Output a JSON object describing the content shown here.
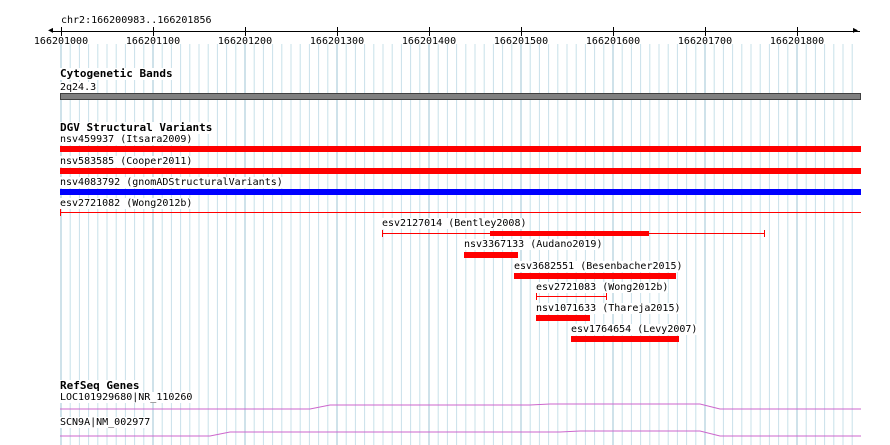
{
  "ruler": {
    "region": "chr2:166200983..166201856",
    "ticks": [
      "166201000",
      "166201100",
      "166201200",
      "166201300",
      "166201400",
      "166201500",
      "166201600",
      "166201700",
      "166201800"
    ]
  },
  "cytoband": {
    "title": "Cytogenetic Bands",
    "band": "2q24.3",
    "color": "#808080"
  },
  "dgv": {
    "title": "DGV Structural Variants",
    "features": [
      {
        "id": "nsv459937",
        "label": "nsv459937 (Itsara2009)",
        "color": "#ff0000"
      },
      {
        "id": "nsv583585",
        "label": "nsv583585 (Cooper2011)",
        "color": "#ff0000"
      },
      {
        "id": "nsv4083792",
        "label": "nsv4083792 (gnomADStructuralVariants)",
        "color": "#0000ff"
      },
      {
        "id": "esv2721082",
        "label": "esv2721082 (Wong2012b)",
        "color": "#ff0000"
      },
      {
        "id": "esv2127014",
        "label": "esv2127014 (Bentley2008)",
        "color": "#ff0000"
      },
      {
        "id": "nsv3367133",
        "label": "nsv3367133 (Audano2019)",
        "color": "#ff0000"
      },
      {
        "id": "esv3682551",
        "label": "esv3682551 (Besenbacher2015)",
        "color": "#ff0000"
      },
      {
        "id": "esv2721083",
        "label": "esv2721083 (Wong2012b)",
        "color": "#ff0000"
      },
      {
        "id": "nsv1071633",
        "label": "nsv1071633 (Thareja2015)",
        "color": "#ff0000"
      },
      {
        "id": "esv1764654",
        "label": "esv1764654 (Levy2007)",
        "color": "#ff0000"
      }
    ]
  },
  "refseq": {
    "title": "RefSeq Genes",
    "genes": [
      {
        "label": "LOC101929680|NR_110260",
        "color": "#cc66cc"
      },
      {
        "label": "SCN9A|NM_002977",
        "color": "#cc66cc"
      }
    ]
  },
  "colors": {
    "grid": "#c8e0ea",
    "grid_major": "#9fc6d6"
  }
}
